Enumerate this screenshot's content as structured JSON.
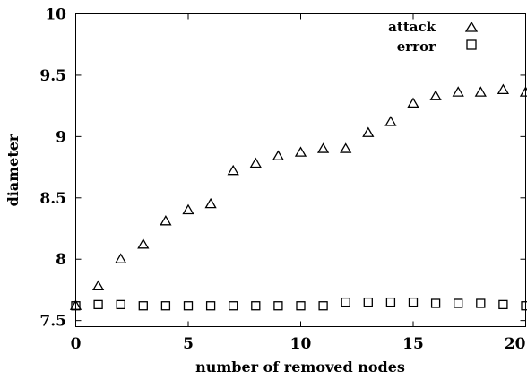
{
  "chart_data": {
    "type": "scatter",
    "xlabel": "number of removed nodes",
    "ylabel": "diameter",
    "xlim": [
      0,
      20
    ],
    "ylim": [
      7.45,
      10
    ],
    "xticks": [
      0,
      5,
      10,
      15,
      20
    ],
    "yticks": [
      7.5,
      8,
      8.5,
      9,
      9.5,
      10
    ],
    "xtick_labels": [
      "0",
      "5",
      "10",
      "15",
      "20"
    ],
    "ytick_labels": [
      "7.5",
      "8",
      "8.5",
      "9",
      "9.5",
      "10"
    ],
    "grid": false,
    "legend_position": "top-right",
    "series": [
      {
        "name": "attack",
        "marker": "triangle",
        "x": [
          0,
          1,
          2,
          3,
          4,
          5,
          6,
          7,
          8,
          9,
          10,
          11,
          12,
          13,
          14,
          15,
          16,
          17,
          18,
          19,
          20
        ],
        "y": [
          7.62,
          7.78,
          8.0,
          8.12,
          8.31,
          8.4,
          8.45,
          8.72,
          8.78,
          8.84,
          8.87,
          8.9,
          8.9,
          9.03,
          9.12,
          9.27,
          9.33,
          9.36,
          9.36,
          9.38,
          9.36
        ]
      },
      {
        "name": "error",
        "marker": "square",
        "x": [
          0,
          1,
          2,
          3,
          4,
          5,
          6,
          7,
          8,
          9,
          10,
          11,
          12,
          13,
          14,
          15,
          16,
          17,
          18,
          19,
          20
        ],
        "y": [
          7.62,
          7.63,
          7.63,
          7.62,
          7.62,
          7.62,
          7.62,
          7.62,
          7.62,
          7.62,
          7.62,
          7.62,
          7.65,
          7.65,
          7.65,
          7.65,
          7.64,
          7.64,
          7.64,
          7.63,
          7.62
        ]
      }
    ]
  }
}
